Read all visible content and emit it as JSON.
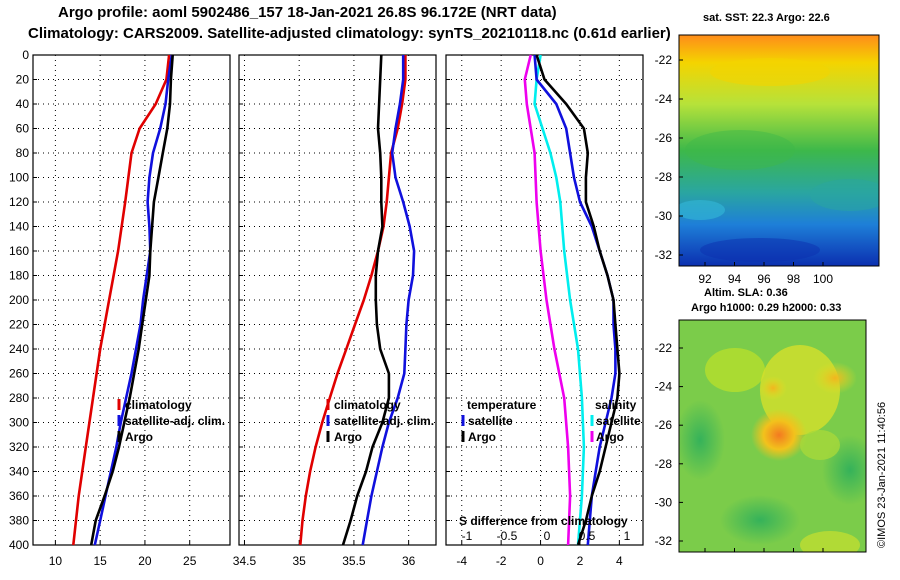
{
  "header": {
    "title_line1": "Argo profile: aoml 5902486_157 18-Jan-2021 26.8S 96.172E (NRT data)",
    "title_line2": "Climatology: CARS2009. Satellite-adjusted climatology: synTS_20210118.nc (0.61d earlier)"
  },
  "maps": {
    "sst_title": "sat. SST: 22.3 Argo: 22.6",
    "sla_title1": "Altim. SLA: 0.36",
    "sla_title2": "Argo h1000: 0.29 h2000: 0.33",
    "lat_ticks": [
      -22,
      -24,
      -26,
      -28,
      -30,
      -32
    ],
    "lon_ticks": [
      92,
      94,
      96,
      98,
      100
    ]
  },
  "credit": "©IMOS 23-Jan-2021 11:40:56",
  "colors": {
    "climatology": "#e00000",
    "satellite": "#1010dd",
    "argo": "#000000",
    "temperature": "#ee00ee",
    "salinity": "#00eeee"
  },
  "chart_data": [
    {
      "type": "line",
      "name": "temperature-profile",
      "xlim": [
        7.5,
        29.5
      ],
      "ylim": [
        0,
        400
      ],
      "xticks": [
        10,
        15,
        20,
        25
      ],
      "yticks": [
        0,
        20,
        40,
        60,
        80,
        100,
        120,
        140,
        160,
        180,
        200,
        220,
        240,
        260,
        280,
        300,
        320,
        340,
        360,
        380,
        400
      ],
      "legend": [
        "climatology",
        "satellite-adj. clim.",
        "Argo"
      ],
      "series": [
        {
          "name": "climatology",
          "color": "#e00000",
          "points": [
            [
              22.7,
              0
            ],
            [
              22.4,
              20
            ],
            [
              21.2,
              40
            ],
            [
              19.4,
              60
            ],
            [
              18.5,
              80
            ],
            [
              17.8,
              120
            ],
            [
              17.0,
              160
            ],
            [
              16.0,
              200
            ],
            [
              15.0,
              240
            ],
            [
              14.2,
              280
            ],
            [
              13.4,
              320
            ],
            [
              12.6,
              360
            ],
            [
              12.0,
              400
            ]
          ]
        },
        {
          "name": "satellite-adj. clim.",
          "color": "#1010dd",
          "points": [
            [
              23.0,
              0
            ],
            [
              22.6,
              20
            ],
            [
              22.3,
              40
            ],
            [
              21.7,
              60
            ],
            [
              20.9,
              80
            ],
            [
              20.5,
              100
            ],
            [
              20.3,
              120
            ],
            [
              20.5,
              140
            ],
            [
              20.6,
              160
            ],
            [
              20.2,
              180
            ],
            [
              19.8,
              200
            ],
            [
              19.5,
              220
            ],
            [
              19.0,
              240
            ],
            [
              18.5,
              260
            ],
            [
              17.9,
              280
            ],
            [
              17.3,
              300
            ],
            [
              16.8,
              320
            ],
            [
              16.2,
              340
            ],
            [
              15.6,
              360
            ],
            [
              15.0,
              380
            ],
            [
              14.4,
              400
            ]
          ]
        },
        {
          "name": "Argo",
          "color": "#000000",
          "points": [
            [
              23.1,
              0
            ],
            [
              22.9,
              20
            ],
            [
              22.8,
              40
            ],
            [
              22.5,
              60
            ],
            [
              22.0,
              80
            ],
            [
              21.5,
              100
            ],
            [
              21.0,
              120
            ],
            [
              20.8,
              140
            ],
            [
              20.6,
              160
            ],
            [
              20.5,
              180
            ],
            [
              20.1,
              200
            ],
            [
              19.7,
              220
            ],
            [
              19.3,
              240
            ],
            [
              18.8,
              260
            ],
            [
              18.3,
              280
            ],
            [
              17.7,
              300
            ],
            [
              17.1,
              320
            ],
            [
              16.4,
              340
            ],
            [
              15.5,
              360
            ],
            [
              14.5,
              380
            ],
            [
              14.0,
              400
            ]
          ]
        }
      ]
    },
    {
      "type": "line",
      "name": "salinity-profile",
      "xlim": [
        34.45,
        36.25
      ],
      "ylim": [
        0,
        400
      ],
      "xticks": [
        34.5,
        35,
        35.5,
        36
      ],
      "xtick_labels": [
        "34.5",
        "35",
        "35.5",
        "36"
      ],
      "legend": [
        "climatology",
        "satellite-adj. clim.",
        "Argo"
      ],
      "series": [
        {
          "name": "climatology",
          "color": "#e00000",
          "points": [
            [
              35.97,
              0
            ],
            [
              35.97,
              20
            ],
            [
              35.94,
              40
            ],
            [
              35.9,
              60
            ],
            [
              35.84,
              80
            ],
            [
              35.82,
              100
            ],
            [
              35.8,
              120
            ],
            [
              35.77,
              140
            ],
            [
              35.72,
              160
            ],
            [
              35.66,
              180
            ],
            [
              35.59,
              200
            ],
            [
              35.51,
              220
            ],
            [
              35.43,
              240
            ],
            [
              35.35,
              260
            ],
            [
              35.28,
              280
            ],
            [
              35.21,
              300
            ],
            [
              35.15,
              320
            ],
            [
              35.1,
              340
            ],
            [
              35.06,
              360
            ],
            [
              35.03,
              380
            ],
            [
              35.01,
              400
            ]
          ]
        },
        {
          "name": "satellite-adj. clim.",
          "color": "#1010dd",
          "points": [
            [
              35.95,
              0
            ],
            [
              35.95,
              20
            ],
            [
              35.92,
              40
            ],
            [
              35.88,
              60
            ],
            [
              35.85,
              80
            ],
            [
              35.88,
              100
            ],
            [
              35.95,
              120
            ],
            [
              36.01,
              140
            ],
            [
              36.05,
              160
            ],
            [
              36.04,
              180
            ],
            [
              36.0,
              200
            ],
            [
              35.98,
              220
            ],
            [
              35.97,
              240
            ],
            [
              35.96,
              260
            ],
            [
              35.9,
              280
            ],
            [
              35.82,
              300
            ],
            [
              35.76,
              320
            ],
            [
              35.71,
              340
            ],
            [
              35.66,
              360
            ],
            [
              35.62,
              380
            ],
            [
              35.58,
              400
            ]
          ]
        },
        {
          "name": "Argo",
          "color": "#000000",
          "points": [
            [
              35.75,
              0
            ],
            [
              35.74,
              20
            ],
            [
              35.73,
              40
            ],
            [
              35.72,
              60
            ],
            [
              35.74,
              80
            ],
            [
              35.75,
              100
            ],
            [
              35.75,
              120
            ],
            [
              35.76,
              140
            ],
            [
              35.72,
              160
            ],
            [
              35.7,
              180
            ],
            [
              35.7,
              200
            ],
            [
              35.71,
              220
            ],
            [
              35.74,
              240
            ],
            [
              35.82,
              260
            ],
            [
              35.82,
              280
            ],
            [
              35.76,
              300
            ],
            [
              35.67,
              320
            ],
            [
              35.61,
              340
            ],
            [
              35.53,
              360
            ],
            [
              35.47,
              380
            ],
            [
              35.4,
              400
            ]
          ]
        }
      ]
    },
    {
      "type": "line",
      "name": "difference-profile",
      "xlim": [
        -4.8,
        5.2
      ],
      "ylim": [
        0,
        400
      ],
      "xticks": [
        -4,
        -2,
        0,
        2,
        4
      ],
      "secondary_xticks": [
        -1,
        -0.5,
        0,
        0.5,
        1
      ],
      "secondary_xtick_labels": [
        "-1",
        "-0.5",
        "0",
        "0.5",
        "1"
      ],
      "secondary_xlabel": "S difference from climatology",
      "legend_left": [
        "temperature",
        "satellite",
        "Argo"
      ],
      "legend_right": [
        "salinity",
        "satellite",
        "Argo"
      ],
      "series": [
        {
          "name": "temperature satellite",
          "color": "#ee00ee",
          "points": [
            [
              -0.5,
              0
            ],
            [
              -0.8,
              20
            ],
            [
              -0.7,
              40
            ],
            [
              -0.5,
              60
            ],
            [
              -0.3,
              80
            ],
            [
              -0.2,
              120
            ],
            [
              0.0,
              160
            ],
            [
              0.3,
              200
            ],
            [
              0.7,
              240
            ],
            [
              1.2,
              280
            ],
            [
              1.4,
              320
            ],
            [
              1.5,
              360
            ],
            [
              1.4,
              400
            ]
          ]
        },
        {
          "name": "salinity satellite",
          "color": "#00eeee",
          "points": [
            [
              0.0,
              0
            ],
            [
              -0.2,
              20
            ],
            [
              -0.3,
              40
            ],
            [
              0.1,
              60
            ],
            [
              0.5,
              80
            ],
            [
              0.8,
              100
            ],
            [
              1.0,
              120
            ],
            [
              1.2,
              160
            ],
            [
              1.5,
              200
            ],
            [
              1.9,
              240
            ],
            [
              2.1,
              280
            ],
            [
              2.2,
              320
            ],
            [
              2.1,
              360
            ],
            [
              1.9,
              400
            ]
          ]
        },
        {
          "name": "temperature Argo",
          "color": "#1010dd",
          "points": [
            [
              -0.3,
              0
            ],
            [
              -0.2,
              20
            ],
            [
              0.8,
              40
            ],
            [
              1.3,
              60
            ],
            [
              1.5,
              80
            ],
            [
              1.7,
              100
            ],
            [
              2.0,
              120
            ],
            [
              2.6,
              140
            ],
            [
              3.0,
              160
            ],
            [
              3.4,
              180
            ],
            [
              3.7,
              200
            ],
            [
              3.7,
              220
            ],
            [
              3.8,
              240
            ],
            [
              3.8,
              260
            ],
            [
              3.6,
              280
            ],
            [
              3.3,
              300
            ],
            [
              3.0,
              320
            ],
            [
              2.8,
              340
            ],
            [
              2.6,
              360
            ],
            [
              2.5,
              380
            ],
            [
              2.4,
              400
            ]
          ]
        },
        {
          "name": "salinity Argo",
          "color": "#000000",
          "points": [
            [
              -0.2,
              0
            ],
            [
              0.2,
              20
            ],
            [
              1.3,
              40
            ],
            [
              2.2,
              60
            ],
            [
              2.4,
              80
            ],
            [
              2.3,
              100
            ],
            [
              2.3,
              120
            ],
            [
              2.7,
              140
            ],
            [
              3.0,
              160
            ],
            [
              3.4,
              180
            ],
            [
              3.7,
              200
            ],
            [
              3.8,
              220
            ],
            [
              3.9,
              240
            ],
            [
              4.0,
              260
            ],
            [
              3.9,
              280
            ],
            [
              3.6,
              300
            ],
            [
              3.3,
              320
            ],
            [
              3.0,
              340
            ],
            [
              2.6,
              360
            ],
            [
              2.3,
              380
            ],
            [
              1.9,
              400
            ]
          ]
        }
      ]
    }
  ]
}
